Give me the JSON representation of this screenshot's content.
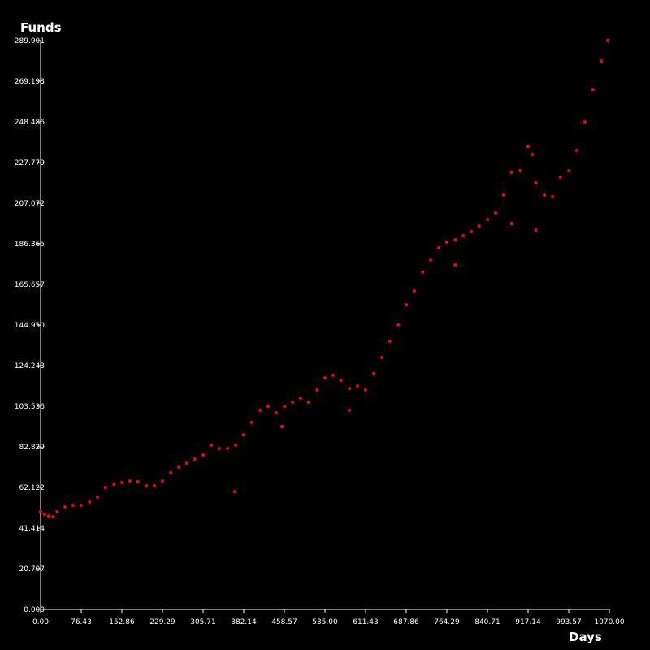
{
  "chart_data": {
    "type": "scatter",
    "x_label": "Days",
    "y_label": "Funds",
    "color": "#ff0000",
    "xlim": [
      0,
      1070
    ],
    "ylim": [
      0,
      289.901
    ],
    "xticks": [
      {
        "value": 0,
        "label": "0.00"
      },
      76.43,
      152.86,
      229.29,
      305.71,
      382.14,
      458.57,
      {
        "value": 535,
        "label": "535.00"
      },
      611.43,
      687.86,
      764.29,
      840.71,
      917.14,
      993.57,
      {
        "value": 1070,
        "label": "1070.00"
      }
    ],
    "yticks": [
      {
        "value": 0,
        "label": "0.000"
      },
      20.707,
      41.414,
      62.122,
      82.829,
      103.536,
      124.243,
      {
        "value": 144.95,
        "label": "144.950"
      },
      165.657,
      186.365,
      207.072,
      227.779,
      248.486,
      269.193,
      289.901
    ],
    "x": [
      0,
      7.6,
      15,
      23,
      31,
      46,
      61,
      76,
      92,
      107,
      122,
      138,
      153,
      168,
      183,
      199,
      214,
      229,
      245,
      260,
      275,
      290,
      306,
      321,
      336,
      352,
      365,
      367,
      382,
      397,
      413,
      428,
      443,
      454,
      459,
      474,
      489,
      504,
      520,
      535,
      550,
      565,
      581,
      581,
      596,
      611,
      627,
      642,
      657,
      673,
      688,
      703,
      719,
      734,
      749,
      764,
      780,
      780,
      795,
      810,
      825,
      841,
      856,
      871,
      886,
      886,
      902,
      917,
      925,
      932,
      932,
      948,
      963,
      978,
      994,
      1009,
      1024,
      1039,
      1055,
      1067
    ],
    "y": [
      49.7,
      48.5,
      47.6,
      47.2,
      49.7,
      52.2,
      53,
      53,
      54.7,
      57.2,
      62.1,
      63.8,
      64.6,
      65.4,
      65,
      62.9,
      62.9,
      65.4,
      69.6,
      72.5,
      74.5,
      76.6,
      78.7,
      83.7,
      82,
      82,
      60,
      83.7,
      89,
      95.3,
      101.5,
      103.5,
      100.2,
      93.2,
      103.5,
      105.6,
      107.7,
      105.6,
      111.8,
      118,
      119.3,
      116.8,
      112.6,
      101.5,
      113.9,
      111.8,
      120.1,
      128.4,
      136.7,
      145,
      155.3,
      162.3,
      171.9,
      178.1,
      184.3,
      187.2,
      188.4,
      175.6,
      190.5,
      192.6,
      195.5,
      198.8,
      202.1,
      211.2,
      222.8,
      196.7,
      223.6,
      236,
      231.9,
      217.4,
      193.4,
      211.2,
      210.4,
      220.3,
      223.6,
      234,
      248.5,
      265,
      279.5,
      289.9
    ]
  }
}
